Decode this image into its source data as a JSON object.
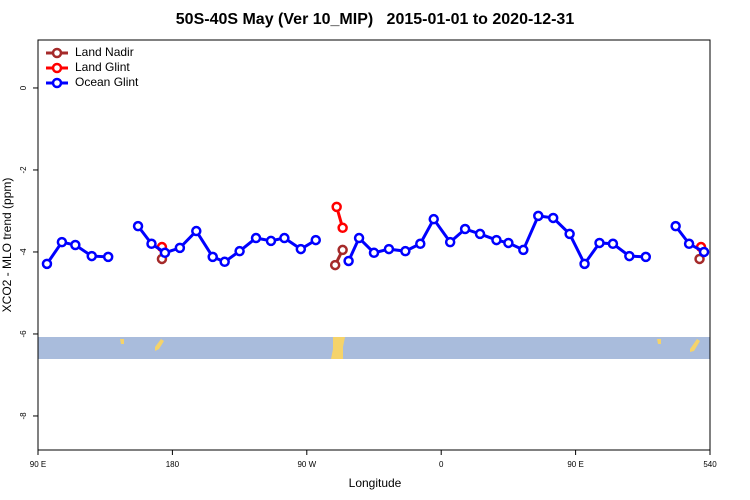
{
  "chart_data": {
    "type": "line",
    "title": "50S-40S May (Ver 10_MIP)   2015-01-01 to 2020-12-31",
    "x_label": "Longitude",
    "y_label": "XCO2 - MLO trend (ppm)",
    "xlim": [
      90,
      540
    ],
    "ylim": [
      -8.83,
      1.17
    ],
    "xticks": [
      {
        "value": 90,
        "label": "90 E"
      },
      180,
      {
        "value": 270,
        "label": "90 W"
      },
      {
        "value": 360,
        "label": "0"
      },
      {
        "value": 450,
        "label": "90 E"
      },
      540
    ],
    "yticks": [
      0,
      -2,
      -4,
      -6,
      -8
    ],
    "legend": "top-left",
    "series": [
      {
        "name": "Land Nadir",
        "color": "#a52a2a",
        "x": [
          173,
          null,
          289,
          294,
          null,
          533
        ],
        "values": [
          -4.17,
          null,
          -4.32,
          -3.95,
          null,
          -4.17
        ]
      },
      {
        "name": "Land Glint",
        "color": "#ff0000",
        "x": [
          173,
          null,
          290,
          294,
          null,
          534
        ],
        "values": [
          -3.88,
          null,
          -2.9,
          -3.41,
          null,
          -3.88
        ]
      },
      {
        "name": "Ocean Glint",
        "color": "#0000ff",
        "x": [
          96,
          106,
          115,
          126,
          137,
          null,
          157,
          166,
          175,
          185,
          196,
          207,
          215,
          225,
          236,
          246,
          255,
          266,
          276,
          null,
          298,
          305,
          315,
          325,
          336,
          346,
          355,
          366,
          376,
          386,
          397,
          405,
          415,
          425,
          435,
          446,
          456,
          466,
          475,
          486,
          497,
          null,
          517,
          526,
          536
        ],
        "values": [
          -4.29,
          -3.76,
          -3.83,
          -4.1,
          -4.12,
          null,
          -3.37,
          -3.8,
          -4.02,
          -3.9,
          -3.49,
          -4.12,
          -4.24,
          -3.98,
          -3.66,
          -3.73,
          -3.66,
          -3.93,
          -3.71,
          null,
          -4.22,
          -3.66,
          -4.02,
          -3.93,
          -3.98,
          -3.8,
          -3.2,
          -3.76,
          -3.44,
          -3.56,
          -3.71,
          -3.78,
          -3.95,
          -3.12,
          -3.17,
          -3.56,
          -4.29,
          -3.78,
          -3.8,
          -4.1,
          -4.12,
          null,
          -3.37,
          -3.8,
          -4.0
        ]
      }
    ]
  }
}
